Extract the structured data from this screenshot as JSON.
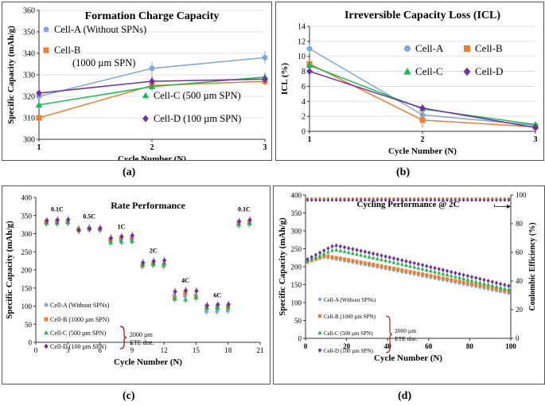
{
  "panels": {
    "a": {
      "label": "(a)",
      "chart_data": {
        "type": "line",
        "title": "Formation Charge Capacity",
        "xlabel": "Cycle Number (N)",
        "ylabel": "Specific Capacity (mAh/g)",
        "x": [
          1,
          2,
          3
        ],
        "xlim": [
          1,
          3
        ],
        "ylim": [
          300,
          360
        ],
        "yticks": [
          300,
          310,
          320,
          330,
          340,
          350,
          360
        ],
        "xticks": [
          1,
          2,
          3
        ],
        "series": [
          {
            "name": "Cell-A (Without SPNs)",
            "color": "#7fa7d8",
            "marker": "circle",
            "values": [
              320,
              333,
              338
            ],
            "err": [
              1.5,
              3,
              3
            ]
          },
          {
            "name": "Cell-B (1000 µm SPN)",
            "color": "#ed7d31",
            "marker": "square",
            "values": [
              310,
              325,
              327
            ],
            "err": [
              1,
              2,
              2
            ]
          },
          {
            "name": "Cell-C (500 µm SPN)",
            "color": "#1db954",
            "marker": "triangle",
            "values": [
              316,
              324.5,
              329
            ],
            "err": [
              1,
              2,
              2
            ]
          },
          {
            "name": "Cell-D (100 µm SPN)",
            "color": "#7030a0",
            "marker": "diamond",
            "values": [
              321.5,
              327,
              328
            ],
            "err": [
              1,
              2.5,
              2
            ]
          }
        ],
        "legend_lines": [
          {
            "text": "Cell-A (Without SPNs)",
            "series": 0
          },
          {
            "text": "Cell-B",
            "series": 1
          },
          {
            "text": "(1000 µm SPN)",
            "series": -1
          },
          {
            "text": "Cell-C (500 µm SPN)",
            "series": 2
          },
          {
            "text": "Cell-D (100 µm SPN)",
            "series": 3
          }
        ]
      }
    },
    "b": {
      "label": "(b)",
      "chart_data": {
        "type": "line",
        "title": "Irreversible Capacity Loss (ICL)",
        "xlabel": "Cycle Number (N)",
        "ylabel": "ICL (%)",
        "x": [
          1,
          2,
          3
        ],
        "xlim": [
          1,
          3
        ],
        "ylim": [
          0,
          14
        ],
        "yticks": [
          0,
          2,
          4,
          6,
          8,
          10,
          12,
          14
        ],
        "xticks": [
          1,
          2,
          3
        ],
        "series": [
          {
            "name": "Cell-A",
            "color": "#7fa7d8",
            "marker": "circle",
            "values": [
              11,
              2.2,
              0.8
            ],
            "err": [
              0.6,
              0.6,
              0.3
            ]
          },
          {
            "name": "Cell-B",
            "color": "#ed7d31",
            "marker": "square",
            "values": [
              9,
              1.5,
              0.6
            ],
            "err": [
              0.5,
              1,
              0.3
            ]
          },
          {
            "name": "Cell-C",
            "color": "#1db954",
            "marker": "triangle",
            "values": [
              8.8,
              3,
              0.9
            ],
            "err": [
              0.5,
              0.5,
              0.3
            ]
          },
          {
            "name": "Cell-D",
            "color": "#7030a0",
            "marker": "diamond",
            "values": [
              8,
              3.1,
              0.5
            ],
            "err": [
              0.6,
              0.5,
              0.3
            ]
          }
        ]
      }
    },
    "c": {
      "label": "(c)",
      "chart_data": {
        "type": "scatter",
        "title": "Rate Performance",
        "xlabel": "Cycle Number (N)",
        "ylabel": "Specific Capacity (mAh/g)",
        "xlim": [
          0,
          21
        ],
        "ylim": [
          0,
          400
        ],
        "xticks": [
          0,
          3,
          6,
          9,
          12,
          15,
          18,
          21
        ],
        "yticks": [
          0,
          50,
          100,
          150,
          200,
          250,
          300,
          350,
          400
        ],
        "x": [
          1,
          2,
          3,
          4,
          5,
          6,
          7,
          8,
          9,
          10,
          11,
          12,
          13,
          14,
          15,
          16,
          17,
          18,
          19,
          20
        ],
        "series": [
          {
            "name": "Cell-A (Without SPNs)",
            "color": "#7fa7d8",
            "marker": "circle",
            "values": [
              328,
              328,
              330,
              312,
              315,
              312,
              280,
              282,
              283,
              210,
              213,
              210,
              130,
              128,
              130,
              85,
              85,
              87,
              325,
              327
            ]
          },
          {
            "name": "Cell-B (1000 µm SPN)",
            "color": "#ed7d31",
            "marker": "square",
            "values": [
              333,
              335,
              334,
              311,
              313,
              312,
              283,
              288,
              287,
              212,
              216,
              215,
              122,
              136,
              125,
              98,
              97,
              98,
              330,
              332
            ]
          },
          {
            "name": "Cell-C (500 µm SPN)",
            "color": "#1db954",
            "marker": "triangle",
            "values": [
              330,
              330,
              331,
              314,
              316,
              313,
              276,
              278,
              279,
              215,
              217,
              218,
              120,
              118,
              124,
              95,
              95,
              96,
              325,
              328
            ]
          },
          {
            "name": "Cell-D (100 µm SPN)",
            "color": "#7030a0",
            "marker": "diamond",
            "values": [
              336,
              338,
              339,
              309,
              314,
              315,
              288,
              292,
              295,
              220,
              224,
              226,
              140,
              143,
              142,
              102,
              104,
              105,
              334,
              338
            ]
          }
        ],
        "annotations": [
          {
            "text": "0.1C",
            "x": 2,
            "y": 362
          },
          {
            "text": "0.5C",
            "x": 5,
            "y": 342
          },
          {
            "text": "1C",
            "x": 8,
            "y": 313
          },
          {
            "text": "2C",
            "x": 11,
            "y": 247
          },
          {
            "text": "4C",
            "x": 14,
            "y": 165
          },
          {
            "text": "6C",
            "x": 17,
            "y": 124
          },
          {
            "text": "0.1C",
            "x": 19.5,
            "y": 362
          }
        ],
        "legend_note": [
          "2000 µm",
          "ETE dist."
        ]
      }
    },
    "d": {
      "label": "(d)",
      "chart_data": {
        "type": "scatter",
        "title": "Cycling Performance @ 2C",
        "xlabel": "Cycle Number (N)",
        "ylabel": "Specific Capacity (mAh/g)",
        "y2label": "Coulombic Efficiency (%)",
        "xlim": [
          0,
          100
        ],
        "ylim": [
          0,
          400
        ],
        "y2lim": [
          0,
          100
        ],
        "xticks": [
          0,
          20,
          40,
          60,
          80,
          100
        ],
        "yticks": [
          0,
          50,
          100,
          150,
          200,
          250,
          300,
          350,
          400
        ],
        "y2ticks": [
          0,
          20,
          40,
          60,
          80,
          100
        ],
        "coulombic_efficiency": 97,
        "series": [
          {
            "name": "Cell-A (Without SPNs)",
            "color": "#7fa7d8",
            "marker": "circle",
            "start": 210,
            "peak": 228,
            "peak_at": 8,
            "end": 125
          },
          {
            "name": "Cell-B (1000 µm SPN)",
            "color": "#ed7d31",
            "marker": "square",
            "start": 212,
            "peak": 230,
            "peak_at": 10,
            "end": 130
          },
          {
            "name": "Cell-C (500 µm SPN)",
            "color": "#1db954",
            "marker": "triangle",
            "start": 215,
            "peak": 248,
            "peak_at": 14,
            "end": 135
          },
          {
            "name": "Cell-D (100 µm SPN)",
            "color": "#7030a0",
            "marker": "diamond",
            "start": 218,
            "peak": 260,
            "peak_at": 14,
            "end": 145
          }
        ],
        "legend_note": [
          "2000 µm",
          "ETE dist."
        ]
      }
    }
  }
}
